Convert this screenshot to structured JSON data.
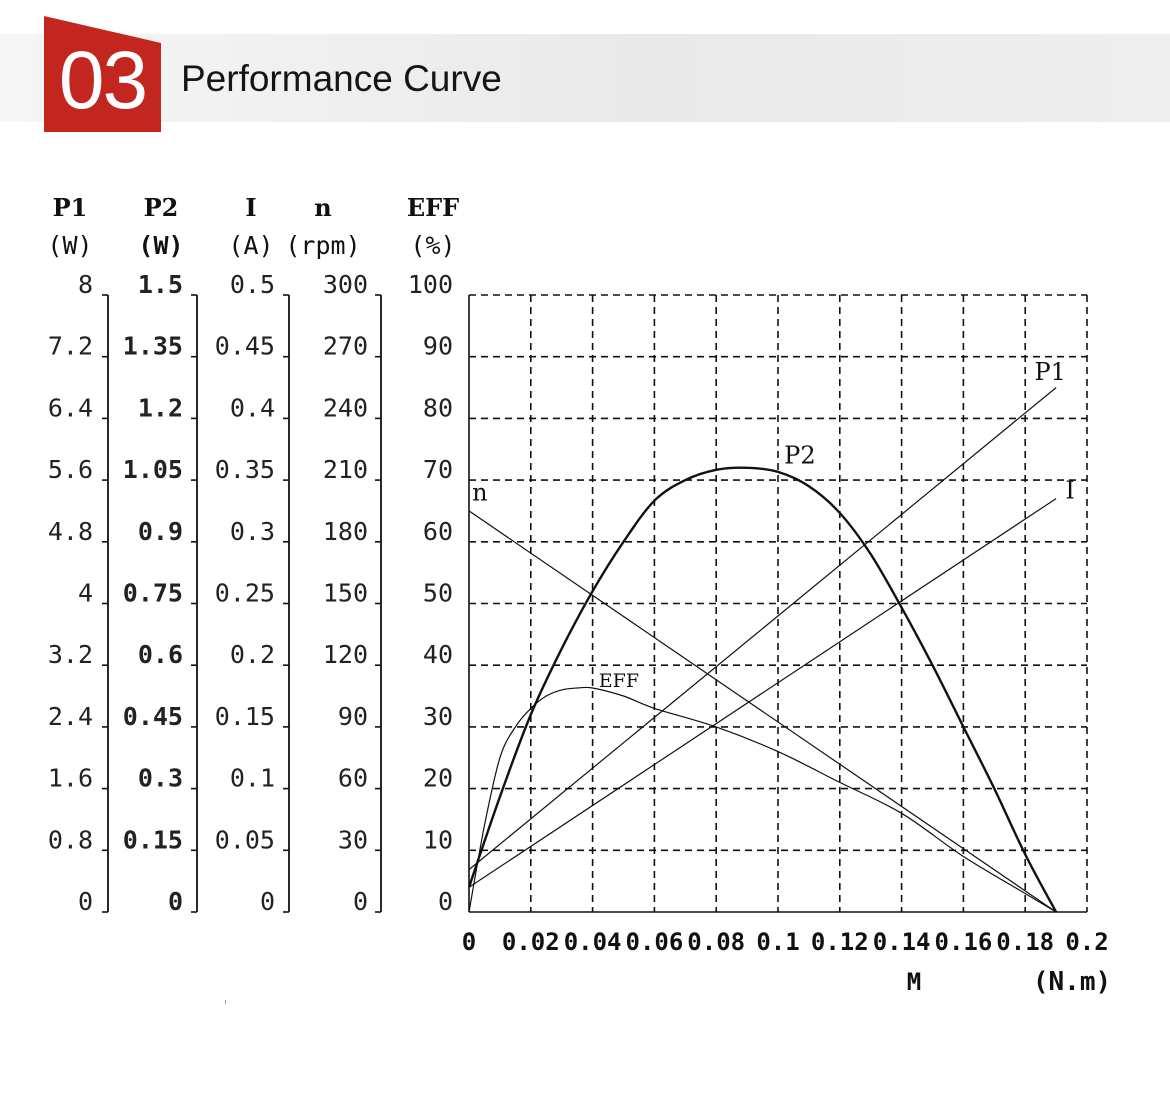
{
  "header": {
    "section_number": "03",
    "title": "Performance Curve",
    "badge_color": "#c2261e"
  },
  "chart_data": {
    "type": "line",
    "x": {
      "label": "M",
      "unit": "(N.m)",
      "range": [
        0,
        0.2
      ],
      "ticks": [
        "0",
        "0.02",
        "0.04",
        "0.06",
        "0.08",
        "0.1",
        "0.12",
        "0.14",
        "0.16",
        "0.18",
        "0.2"
      ]
    },
    "axes": [
      {
        "id": "P1",
        "name": "P1",
        "unit": "(W)",
        "range": [
          0,
          8
        ],
        "ticks": [
          "0",
          "0.8",
          "1.6",
          "2.4",
          "3.2",
          "4",
          "4.8",
          "5.6",
          "6.4",
          "7.2",
          "8"
        ]
      },
      {
        "id": "P2",
        "name": "P2",
        "unit": "(W)",
        "range": [
          0,
          1.5
        ],
        "bold": true,
        "ticks": [
          "0",
          "0.15",
          "0.3",
          "0.45",
          "0.6",
          "0.75",
          "0.9",
          "1.05",
          "1.2",
          "1.35",
          "1.5"
        ]
      },
      {
        "id": "I",
        "name": "I",
        "unit": "(A)",
        "range": [
          0,
          0.5
        ],
        "ticks": [
          "0",
          "0.05",
          "0.1",
          "0.15",
          "0.2",
          "0.25",
          "0.3",
          "0.35",
          "0.4",
          "0.45",
          "0.5"
        ]
      },
      {
        "id": "n",
        "name": "n",
        "unit": "(rpm)",
        "range": [
          0,
          300
        ],
        "ticks": [
          "0",
          "30",
          "60",
          "90",
          "120",
          "150",
          "180",
          "210",
          "240",
          "270",
          "300"
        ]
      },
      {
        "id": "EFF",
        "name": "EFF",
        "unit": "(%)",
        "range": [
          0,
          100
        ],
        "ticks": [
          "0",
          "10",
          "20",
          "30",
          "40",
          "50",
          "60",
          "70",
          "80",
          "90",
          "100"
        ]
      }
    ],
    "grid": true,
    "series": [
      {
        "name": "P1",
        "axis": "P1",
        "width": 1.2,
        "x": [
          0,
          0.19
        ],
        "y": [
          0.55,
          6.8
        ],
        "label_at": {
          "x": 0.183,
          "y": 6.9
        }
      },
      {
        "name": "P2",
        "axis": "P2",
        "width": 2.4,
        "x": [
          0,
          0.01,
          0.02,
          0.03,
          0.04,
          0.05,
          0.06,
          0.07,
          0.08,
          0.09,
          0.1,
          0.11,
          0.12,
          0.13,
          0.14,
          0.15,
          0.16,
          0.17,
          0.18,
          0.19
        ],
        "y": [
          0.06,
          0.28,
          0.48,
          0.64,
          0.78,
          0.9,
          1.0,
          1.05,
          1.075,
          1.08,
          1.07,
          1.035,
          0.97,
          0.87,
          0.74,
          0.6,
          0.45,
          0.3,
          0.14,
          0.0
        ],
        "label_at": {
          "x": 0.102,
          "y": 1.09
        }
      },
      {
        "name": "I",
        "axis": "I",
        "width": 1.2,
        "x": [
          0,
          0.19
        ],
        "y": [
          0.02,
          0.335
        ],
        "label_at": {
          "x": 0.193,
          "y": 0.335
        }
      },
      {
        "name": "n",
        "axis": "n",
        "width": 1.2,
        "x": [
          0,
          0.19
        ],
        "y": [
          195,
          0
        ],
        "label_at": {
          "x": 0.001,
          "y": 200
        }
      },
      {
        "name": "EFF",
        "axis": "EFF",
        "width": 1.2,
        "x": [
          0,
          0.005,
          0.01,
          0.015,
          0.02,
          0.025,
          0.03,
          0.035,
          0.04,
          0.05,
          0.06,
          0.08,
          0.1,
          0.12,
          0.14,
          0.16,
          0.18,
          0.19
        ],
        "y": [
          0,
          14,
          25,
          30,
          33,
          35,
          36,
          36.3,
          36.3,
          35,
          33,
          30,
          26,
          21,
          16,
          9,
          3,
          0
        ],
        "label_at": {
          "x": 0.042,
          "y": 36.5
        }
      }
    ]
  }
}
